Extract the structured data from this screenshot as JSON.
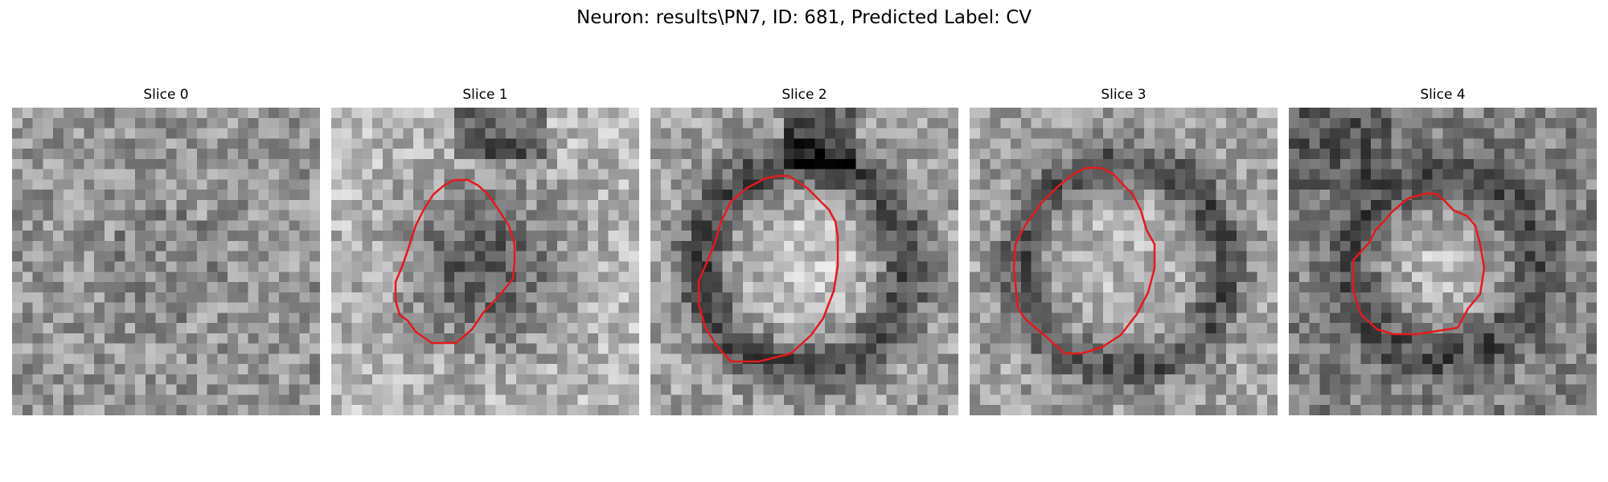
{
  "figure": {
    "title": "Neuron: results\\PN7, ID: 681, Predicted Label: CV"
  },
  "slices": [
    {
      "title": "Slice 0",
      "has_contour": false,
      "pattern": "uniform-noise"
    },
    {
      "title": "Slice 1",
      "has_contour": true,
      "pattern": "dark-blob",
      "contour_color": "#e41a1c"
    },
    {
      "title": "Slice 2",
      "has_contour": true,
      "pattern": "bright-ring",
      "contour_color": "#e41a1c"
    },
    {
      "title": "Slice 3",
      "has_contour": true,
      "pattern": "dark-ring",
      "contour_color": "#e41a1c"
    },
    {
      "title": "Slice 4",
      "has_contour": true,
      "pattern": "bright-center",
      "contour_color": "#e41a1c"
    }
  ],
  "colormap": "gray"
}
